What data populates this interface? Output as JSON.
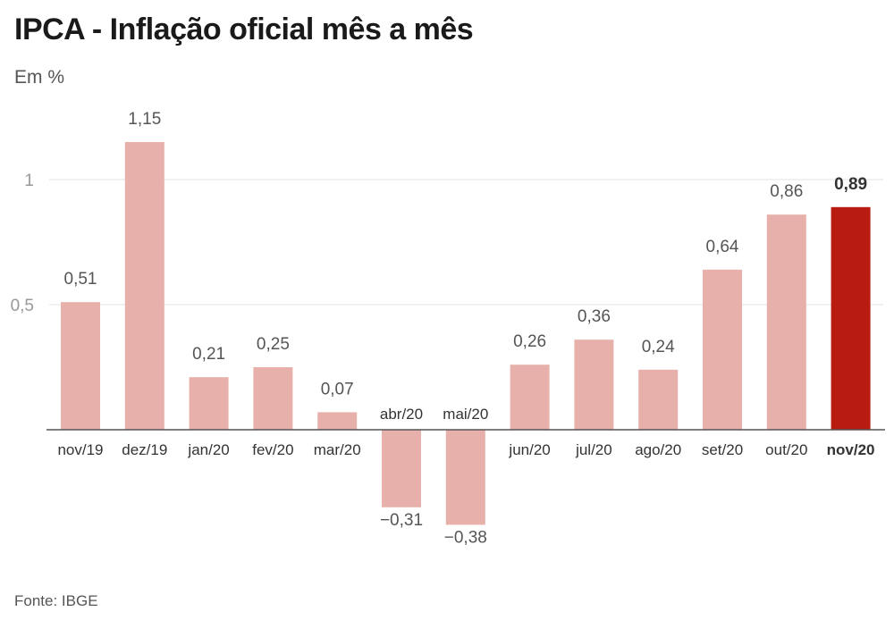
{
  "header": {
    "title": "IPCA - Inflação oficial mês a mês",
    "subtitle": "Em %"
  },
  "footer": {
    "source": "Fonte: IBGE"
  },
  "colors": {
    "bar": "#e8b0aa",
    "highlight": "#b81c10",
    "grid": "#e3e3e3",
    "baseline": "#555555"
  },
  "chart_data": {
    "type": "bar",
    "categories": [
      "nov/19",
      "dez/19",
      "jan/20",
      "fev/20",
      "mar/20",
      "abr/20",
      "mai/20",
      "jun/20",
      "jul/20",
      "ago/20",
      "set/20",
      "out/20",
      "nov/20"
    ],
    "values": [
      0.51,
      1.15,
      0.21,
      0.25,
      0.07,
      -0.31,
      -0.38,
      0.26,
      0.36,
      0.24,
      0.64,
      0.86,
      0.89
    ],
    "value_labels": [
      "0,51",
      "1,15",
      "0,21",
      "0,25",
      "0,07",
      "−0,31",
      "−0,38",
      "0,26",
      "0,36",
      "0,24",
      "0,64",
      "0,86",
      "0,89"
    ],
    "highlight_category": "nov/20",
    "yticks": [
      0.5,
      1
    ],
    "ytick_labels": [
      "0,5",
      "1"
    ],
    "ylim": [
      -0.5,
      1.25
    ],
    "grid": true
  }
}
